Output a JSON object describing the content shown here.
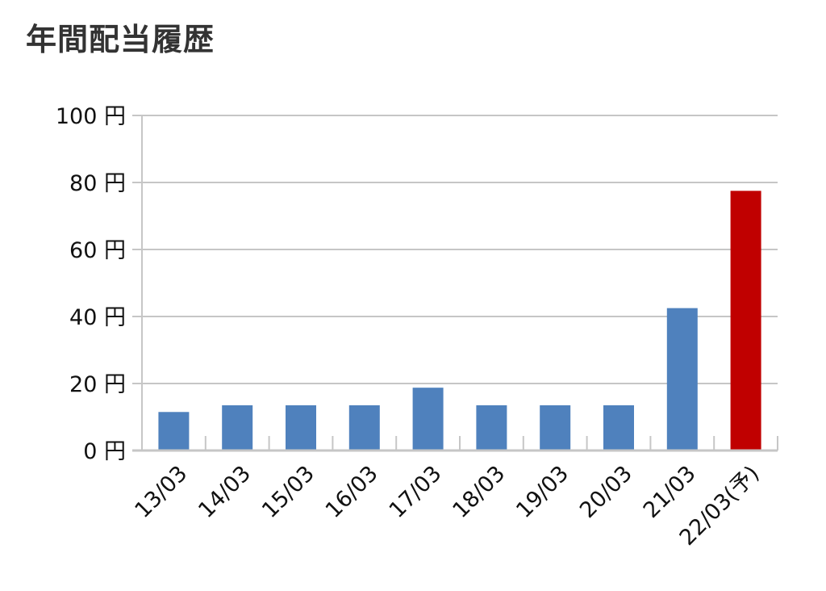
{
  "title": "年間配当履歴",
  "chart_data": {
    "type": "bar",
    "title": "年間配当履歴",
    "categories": [
      "13/03",
      "14/03",
      "15/03",
      "16/03",
      "17/03",
      "18/03",
      "19/03",
      "20/03",
      "21/03",
      "22/03(予)"
    ],
    "values": [
      11.5,
      13.5,
      13.5,
      13.5,
      18.75,
      13.5,
      13.5,
      13.5,
      42.5,
      77.5
    ],
    "bar_colors": [
      "#4f81bd",
      "#4f81bd",
      "#4f81bd",
      "#4f81bd",
      "#4f81bd",
      "#4f81bd",
      "#4f81bd",
      "#4f81bd",
      "#4f81bd",
      "#c00000"
    ],
    "y_ticks": [
      0,
      20,
      40,
      60,
      80,
      100
    ],
    "y_tick_labels": [
      "0 円",
      "20 円",
      "40 円",
      "60 円",
      "80 円",
      "100 円"
    ],
    "ylim": [
      0,
      100
    ],
    "xlabel": "",
    "ylabel": "",
    "grid": true,
    "legend": "none"
  }
}
